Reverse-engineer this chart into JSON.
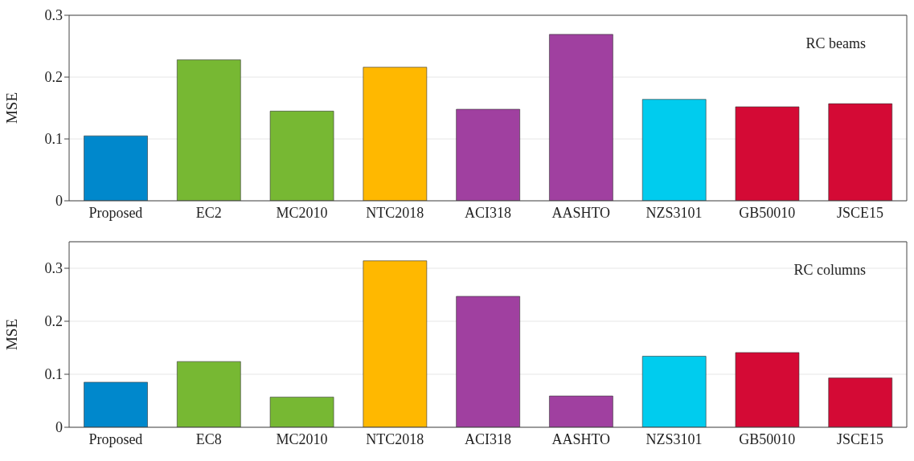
{
  "chart_data": [
    {
      "type": "bar",
      "ylabel": "MSE",
      "categories": [
        "Proposed",
        "EC2",
        "MC2010",
        "NTC2018",
        "ACI318",
        "AASHTO",
        "NZS3101",
        "GB50010",
        "JSCE15"
      ],
      "values": [
        0.105,
        0.228,
        0.145,
        0.216,
        0.148,
        0.269,
        0.164,
        0.152,
        0.157
      ],
      "colors": [
        "#0088cc",
        "#77b833",
        "#77b833",
        "#ffb800",
        "#a040a0",
        "#a040a0",
        "#00ccee",
        "#d40a35",
        "#d40a35"
      ],
      "ylim": [
        0,
        0.3
      ],
      "yticks": [
        0,
        0.1,
        0.2,
        0.3
      ],
      "grid": "y",
      "annotations": [
        "RC beams"
      ]
    },
    {
      "type": "bar",
      "ylabel": "MSE",
      "categories": [
        "Proposed",
        "EC8",
        "MC2010",
        "NTC2018",
        "ACI318",
        "AASHTO",
        "NZS3101",
        "GB50010",
        "JSCE15"
      ],
      "values": [
        0.085,
        0.124,
        0.057,
        0.314,
        0.247,
        0.059,
        0.134,
        0.141,
        0.093
      ],
      "colors": [
        "#0088cc",
        "#77b833",
        "#77b833",
        "#ffb800",
        "#a040a0",
        "#a040a0",
        "#00ccee",
        "#d40a35",
        "#d40a35"
      ],
      "ylim": [
        0,
        0.35
      ],
      "yticks": [
        0,
        0.1,
        0.2,
        0.3
      ],
      "grid": "y",
      "annotations": [
        "RC columns"
      ]
    }
  ]
}
